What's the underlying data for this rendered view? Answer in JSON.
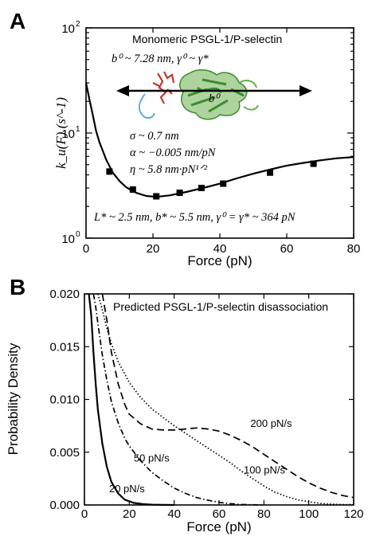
{
  "chart_data": [
    {
      "panel": "A",
      "type": "line",
      "title": "Monomeric PSGL-1/P-selectin",
      "xlabel": "Force (pN)",
      "ylabel": "k_u(F) (s^-1)",
      "xlim": [
        0,
        80
      ],
      "ylim": [
        1,
        100
      ],
      "yscale": "log",
      "x_ticks": [
        "0",
        "20",
        "40",
        "60",
        "80"
      ],
      "y_ticks": [
        {
          "base": "10",
          "exp": "0"
        },
        {
          "base": "10",
          "exp": "1"
        },
        {
          "base": "10",
          "exp": "2"
        }
      ],
      "annotations": {
        "top": "b⁰ ~ 7.28 nm, γ⁰ ~ γ*",
        "b0_label": "b⁰",
        "params": [
          "σ ~ 0.7 nm",
          "α ~ −0.005 nm/pN",
          "η ~ 5.8 nm·pN¹ᐟ²"
        ],
        "bottom": "L* ~ 2.5 nm, b* ~ 5.5 nm, γ⁰ = γ* ~ 364 pN"
      },
      "series": [
        {
          "name": "data",
          "style": "squares",
          "x": [
            7,
            14,
            21,
            28,
            34.5,
            41,
            55,
            68
          ],
          "y": [
            4.3,
            2.9,
            2.5,
            2.7,
            3.0,
            3.3,
            4.2,
            5.1
          ]
        },
        {
          "name": "fit",
          "style": "solid",
          "x": [
            0,
            1,
            2,
            3,
            4,
            6,
            8,
            10,
            12,
            15,
            18,
            21,
            25,
            30,
            35,
            40,
            45,
            50,
            55,
            60,
            65,
            70,
            75,
            80
          ],
          "y": [
            30,
            21,
            15,
            10.5,
            8.2,
            5.6,
            4.2,
            3.5,
            3.05,
            2.7,
            2.52,
            2.47,
            2.55,
            2.75,
            3.0,
            3.3,
            3.7,
            4.1,
            4.5,
            4.9,
            5.2,
            5.5,
            5.75,
            5.9
          ]
        }
      ],
      "colors": {
        "protein": "#6ab04c",
        "ligand": "#c0392b",
        "chain": "#5dade2"
      }
    },
    {
      "panel": "B",
      "type": "line",
      "title": "Predicted PSGL-1/P-selectin disassociation",
      "xlabel": "Force (pN)",
      "ylabel": "Probability Density",
      "xlim": [
        0,
        120
      ],
      "ylim": [
        0,
        0.02
      ],
      "x_ticks": [
        "0",
        "20",
        "40",
        "60",
        "80",
        "100",
        "120"
      ],
      "y_ticks": [
        "0.000",
        "0.005",
        "0.010",
        "0.015",
        "0.020"
      ],
      "series": [
        {
          "name": "20 pN/s",
          "style": "solid",
          "x": [
            2,
            3,
            4,
            5,
            6,
            8,
            10,
            12,
            15,
            18,
            22,
            26,
            30,
            35,
            40
          ],
          "y": [
            0.0215,
            0.018,
            0.0145,
            0.0115,
            0.009,
            0.0058,
            0.0036,
            0.0022,
            0.0011,
            0.0005,
            0.0002,
            8e-05,
            3e-05,
            1e-05,
            0.0
          ]
        },
        {
          "name": "50 pN/s",
          "style": "dashdot",
          "x": [
            4,
            5,
            6,
            8,
            10,
            12,
            15,
            18,
            20,
            25,
            30,
            35,
            40,
            45,
            50,
            55,
            60,
            65,
            70,
            75,
            80
          ],
          "y": [
            0.0205,
            0.0188,
            0.0172,
            0.0142,
            0.0118,
            0.0098,
            0.0078,
            0.0063,
            0.0056,
            0.0042,
            0.0031,
            0.0023,
            0.0016,
            0.0011,
            0.0007,
            0.00045,
            0.00025,
            0.00012,
            5e-05,
            2e-05,
            0.0
          ]
        },
        {
          "name": "100 pN/s",
          "style": "dotted",
          "x": [
            6,
            8,
            10,
            12,
            15,
            20,
            25,
            30,
            35,
            40,
            45,
            50,
            55,
            60,
            65,
            70,
            75,
            80,
            85,
            90,
            95,
            100,
            105,
            110,
            115,
            120
          ],
          "y": [
            0.0205,
            0.0185,
            0.0167,
            0.0153,
            0.0136,
            0.0116,
            0.0102,
            0.0091,
            0.0083,
            0.0075,
            0.0068,
            0.0061,
            0.0054,
            0.0047,
            0.004,
            0.0032,
            0.0025,
            0.0018,
            0.0012,
            0.0008,
            0.0005,
            0.0003,
            0.00015,
            8e-05,
            4e-05,
            2e-05
          ]
        },
        {
          "name": "200 pN/s",
          "style": "dashed",
          "x": [
            8,
            10,
            12,
            15,
            18,
            20,
            25,
            30,
            35,
            40,
            45,
            50,
            55,
            60,
            65,
            70,
            75,
            80,
            85,
            90,
            95,
            100,
            105,
            110,
            115,
            120
          ],
          "y": [
            0.0205,
            0.0175,
            0.0145,
            0.0115,
            0.0095,
            0.0086,
            0.0077,
            0.0072,
            0.0071,
            0.0071,
            0.0072,
            0.0073,
            0.0072,
            0.007,
            0.0066,
            0.0061,
            0.0055,
            0.0048,
            0.0041,
            0.0034,
            0.0027,
            0.0021,
            0.0016,
            0.0012,
            0.0009,
            0.0007
          ]
        }
      ],
      "label_positions": [
        {
          "text": "20 pN/s",
          "x": 11,
          "y": 0.0012
        },
        {
          "text": "50 pN/s",
          "x": 22,
          "y": 0.0041
        },
        {
          "text": "100 pN/s",
          "x": 71,
          "y": 0.003
        },
        {
          "text": "200 pN/s",
          "x": 74,
          "y": 0.0074
        }
      ]
    }
  ]
}
